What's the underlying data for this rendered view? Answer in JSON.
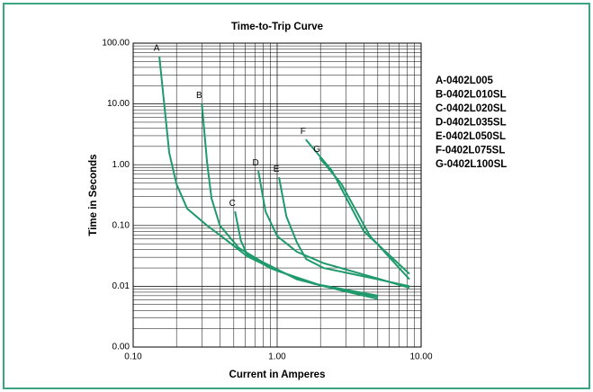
{
  "chart_data": {
    "type": "line",
    "title": "Time-to-Trip Curve",
    "x_label": "Current in Amperes",
    "y_label": "Time in Seconds",
    "log_x": true,
    "log_y": true,
    "grid": true,
    "minor_grid": true,
    "legend": "right",
    "xlim": [
      0.1,
      10
    ],
    "xticks": [
      {
        "value": 0.1,
        "label": "0.10"
      },
      {
        "value": 1,
        "label": "1.00"
      },
      {
        "value": 10,
        "label": "10.00"
      }
    ],
    "ylim": [
      0.001,
      100
    ],
    "yticks": [
      {
        "value": 0.001,
        "label": "0.00"
      },
      {
        "value": 0.01,
        "label": "0.01"
      },
      {
        "value": 0.1,
        "label": "0.10"
      },
      {
        "value": 1,
        "label": "1.00"
      },
      {
        "value": 10,
        "label": "10.00"
      },
      {
        "value": 100,
        "label": "100.00"
      }
    ],
    "series": [
      {
        "name": "A-0402L005",
        "label": "A",
        "color": "#1f9a6c",
        "x": [
          0.152,
          0.178,
          0.2,
          0.237,
          0.326,
          0.43,
          0.62,
          1.0,
          2.1,
          5.0
        ],
        "values": [
          60,
          1.57,
          0.48,
          0.19,
          0.1,
          0.061,
          0.031,
          0.018,
          0.01,
          0.0067
        ]
      },
      {
        "name": "B-0402L010SL",
        "label": "B",
        "color": "#1f9a6c",
        "x": [
          0.3,
          0.326,
          0.35,
          0.4,
          0.54,
          0.77,
          1.37,
          2.8,
          5.0
        ],
        "values": [
          10,
          1.1,
          0.28,
          0.1,
          0.043,
          0.026,
          0.013,
          0.0085,
          0.0062
        ]
      },
      {
        "name": "C-0402L020SL",
        "label": "C",
        "color": "#1f9a6c",
        "x": [
          0.51,
          0.56,
          0.62,
          0.89,
          1.8,
          5.0
        ],
        "values": [
          0.17,
          0.056,
          0.033,
          0.02,
          0.011,
          0.007
        ]
      },
      {
        "name": "D-0402L035SL",
        "label": "D",
        "color": "#1f9a6c",
        "x": [
          0.74,
          0.83,
          1.0,
          1.37,
          2.1,
          5.0,
          8.3
        ],
        "values": [
          0.79,
          0.17,
          0.067,
          0.037,
          0.024,
          0.0134,
          0.0094
        ]
      },
      {
        "name": "E-0402L050SL",
        "label": "E",
        "color": "#1f9a6c",
        "x": [
          1.03,
          1.16,
          1.37,
          1.59,
          2.1,
          5.0,
          8.3
        ],
        "values": [
          0.62,
          0.14,
          0.053,
          0.028,
          0.02,
          0.013,
          0.01
        ]
      },
      {
        "name": "F-0402L075SL",
        "label": "F",
        "color": "#1f9a6c",
        "x": [
          1.58,
          2.4,
          4.0,
          8.3
        ],
        "values": [
          2.6,
          0.8,
          0.08,
          0.016
        ]
      },
      {
        "name": "G-0402L100SL",
        "label": "G",
        "color": "#1f9a6c",
        "x": [
          1.97,
          2.8,
          4.4,
          8.3
        ],
        "values": [
          1.3,
          0.48,
          0.068,
          0.013
        ]
      }
    ]
  }
}
